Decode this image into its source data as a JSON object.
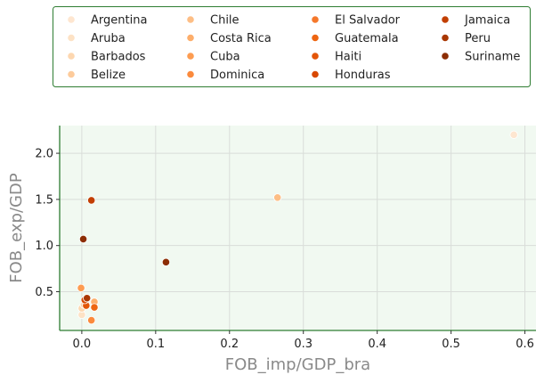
{
  "chart_data": {
    "type": "scatter",
    "xlabel": "FOB_imp/GDP_bra",
    "ylabel": "FOB_exp/GDP",
    "xlim": [
      -0.03,
      0.615
    ],
    "ylim": [
      0.08,
      2.3
    ],
    "xticks": [
      0.0,
      0.1,
      0.2,
      0.3,
      0.4,
      0.5,
      0.6
    ],
    "xtick_labels": [
      "0.0",
      "0.1",
      "0.2",
      "0.3",
      "0.4",
      "0.5",
      "0.6"
    ],
    "yticks": [
      0.5,
      1.0,
      1.5,
      2.0
    ],
    "ytick_labels": [
      "0.5",
      "1.0",
      "1.5",
      "2.0"
    ],
    "grid": true,
    "legend_position": "top, outside, 4 columns",
    "colors": {
      "plot_background": "#f1f9f1",
      "axis_spine": "#2e7d32",
      "legend_border": "#2e7d32",
      "grid": "#d9ddd9"
    },
    "series": [
      {
        "name": "Argentina",
        "color": "#fee6d0",
        "points": [
          [
            0.585,
            2.2
          ]
        ]
      },
      {
        "name": "Aruba",
        "color": "#fde2c5",
        "points": [
          [
            0.0,
            0.25
          ]
        ]
      },
      {
        "name": "Barbados",
        "color": "#fdd7b0",
        "points": [
          [
            0.0,
            0.32
          ]
        ]
      },
      {
        "name": "Belize",
        "color": "#fdcb9b",
        "points": [
          [
            0.003,
            0.36
          ]
        ]
      },
      {
        "name": "Chile",
        "color": "#fdbe85",
        "points": [
          [
            0.265,
            1.52
          ]
        ]
      },
      {
        "name": "Costa Rica",
        "color": "#fdae6b",
        "points": [
          [
            0.017,
            0.39
          ]
        ]
      },
      {
        "name": "Cuba",
        "color": "#fd9c51",
        "points": [
          [
            -0.001,
            0.54
          ]
        ]
      },
      {
        "name": "Dominica",
        "color": "#fb8a3c",
        "points": [
          [
            0.013,
            0.19
          ]
        ]
      },
      {
        "name": "El Salvador",
        "color": "#f5782b",
        "points": [
          [
            0.005,
            0.38
          ]
        ]
      },
      {
        "name": "Guatemala",
        "color": "#ee6511",
        "points": [
          [
            0.017,
            0.33
          ]
        ]
      },
      {
        "name": "Haiti",
        "color": "#e35508",
        "points": [
          [
            0.006,
            0.35
          ]
        ]
      },
      {
        "name": "Honduras",
        "color": "#d84801",
        "points": [
          [
            0.004,
            0.41
          ]
        ]
      },
      {
        "name": "Jamaica",
        "color": "#c23f02",
        "points": [
          [
            0.013,
            1.49
          ]
        ]
      },
      {
        "name": "Peru",
        "color": "#a93703",
        "points": [
          [
            0.007,
            0.43
          ]
        ]
      },
      {
        "name": "Suriname",
        "color": "#8c2d04",
        "points": [
          [
            0.002,
            1.07
          ],
          [
            0.114,
            0.82
          ]
        ]
      }
    ]
  }
}
